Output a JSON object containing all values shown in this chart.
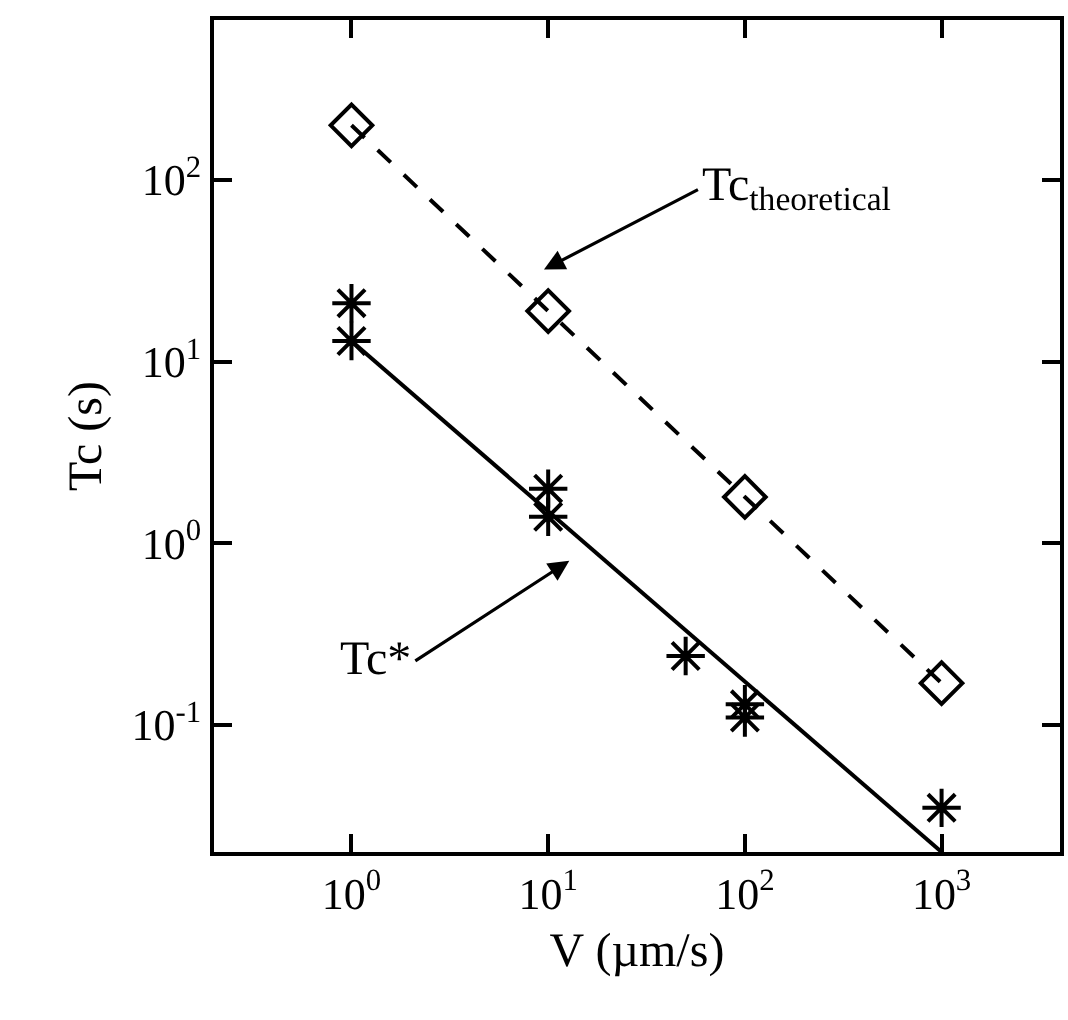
{
  "chart_data": {
    "type": "scatter",
    "xlabel": "V (µm/s)",
    "ylabel": "Tc (s)",
    "log": "xy",
    "grid": false,
    "xlim": [
      0.2,
      4000
    ],
    "ylim": [
      0.02,
      760
    ],
    "xticks": [
      {
        "value": 1,
        "label": "10$^{0}$"
      },
      {
        "value": 10,
        "label": "10$^{1}$"
      },
      {
        "value": 100,
        "label": "10$^{2}$"
      },
      {
        "value": 1000,
        "label": "10$^{3}$"
      }
    ],
    "yticks": [
      {
        "value": 0.1,
        "label": "10$^{-1}$"
      },
      {
        "value": 1,
        "label": "10$^{0}$"
      },
      {
        "value": 10,
        "label": "10$^{1}$"
      },
      {
        "value": 100,
        "label": "10$^{2}$"
      }
    ],
    "series": [
      {
        "type": "line",
        "color": "#000000",
        "marker": "diamond",
        "line_style": "dashed",
        "x": [
          1,
          10,
          100,
          1000
        ],
        "values": [
          200,
          19,
          1.8,
          0.17
        ]
      },
      {
        "color": "#000000",
        "marker": "cross",
        "x": [
          1,
          1,
          10,
          10,
          50,
          100,
          100,
          1000
        ],
        "values": [
          21,
          13,
          2,
          1.4,
          0.24,
          0.13,
          0.11,
          0.035
        ]
      },
      {
        "type": "line",
        "color": "#000000",
        "marker": "none",
        "line_style": "solid",
        "x": [
          1,
          1000
        ],
        "values": [
          13,
          0.02
        ]
      }
    ],
    "annotations": [
      "Tc$_{theoretical}$",
      "Tc*"
    ]
  }
}
